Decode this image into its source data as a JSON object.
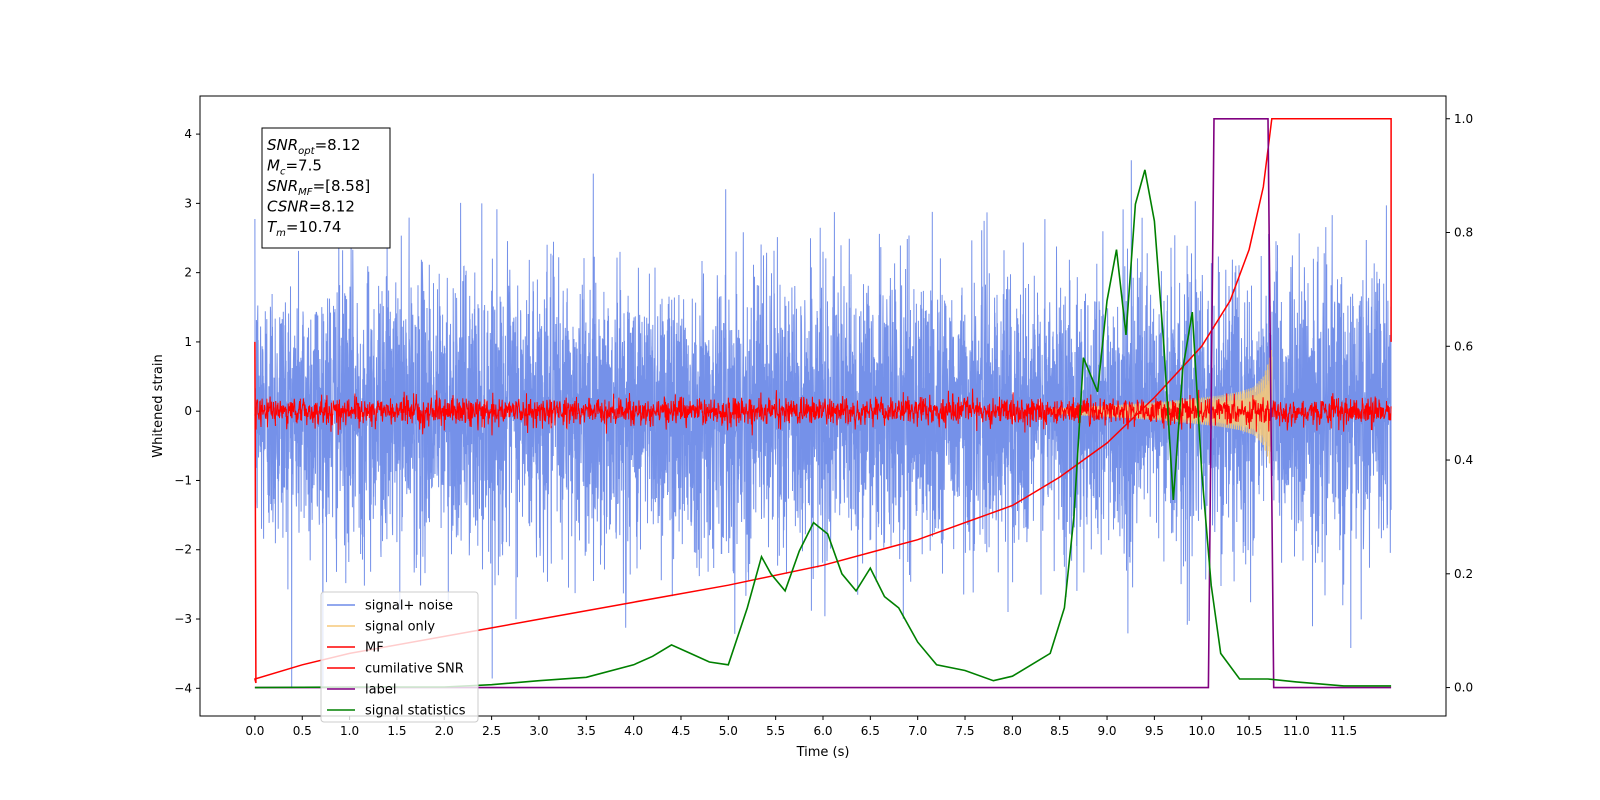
{
  "chart_data": {
    "type": "line",
    "title": "",
    "xlabel": "Time (s)",
    "ylabel": "Whitened strain",
    "xlim": [
      -0.58,
      12.58
    ],
    "ylim": [
      -4.4,
      4.55
    ],
    "y2lim": [
      -0.05,
      1.04
    ],
    "x_ticks": [
      0.0,
      0.5,
      1.0,
      1.5,
      2.0,
      2.5,
      3.0,
      3.5,
      4.0,
      4.5,
      5.0,
      5.5,
      6.0,
      6.5,
      7.0,
      7.5,
      8.0,
      8.5,
      9.0,
      9.5,
      10.0,
      10.5,
      11.0,
      11.5
    ],
    "x_tick_labels": [
      "0.0",
      "0.5",
      "1.0",
      "1.5",
      "2.0",
      "2.5",
      "3.0",
      "3.5",
      "4.0",
      "4.5",
      "5.0",
      "5.5",
      "6.0",
      "6.5",
      "7.0",
      "7.5",
      "8.0",
      "8.5",
      "9.0",
      "9.5",
      "10.0",
      "10.5",
      "11.0",
      "11.5"
    ],
    "y_ticks": [
      -4,
      -3,
      -2,
      -1,
      0,
      1,
      2,
      3,
      4
    ],
    "y_tick_labels": [
      "−4",
      "−3",
      "−2",
      "−1",
      "0",
      "1",
      "2",
      "3",
      "4"
    ],
    "y2_ticks": [
      0.0,
      0.2,
      0.4,
      0.6,
      0.8,
      1.0
    ],
    "y2_tick_labels": [
      "0.0",
      "0.2",
      "0.4",
      "0.6",
      "0.8",
      "1.0"
    ],
    "annotation": {
      "lines": [
        {
          "base": "SNR",
          "sub": "opt",
          "rest": "=8.12"
        },
        {
          "base": "M",
          "sub": "c",
          "rest": "=7.5"
        },
        {
          "base": "SNR",
          "sub": "MF",
          "rest": "=[8.58]"
        },
        {
          "base": "CSNR",
          "sub": "",
          "rest": "=8.12"
        },
        {
          "base": "T",
          "sub": "m",
          "rest": "=10.74"
        }
      ]
    },
    "legend": {
      "placement": "lower-left",
      "entries": [
        {
          "label": "signal+ noise",
          "color": "#6e8be8"
        },
        {
          "label": "signal only",
          "color": "#f5c97a"
        },
        {
          "label": "MF",
          "color": "#ff0000"
        },
        {
          "label": "cumilative SNR",
          "color": "#ff0000"
        },
        {
          "label": "label",
          "color": "#800080"
        },
        {
          "label": "signal statistics",
          "color": "#008000"
        }
      ]
    },
    "series": [
      {
        "name": "signal+ noise",
        "axis": "left",
        "color": "#6e8be8",
        "kind": "noise",
        "x_range": [
          0.0,
          12.0
        ],
        "std": 1.0,
        "clip": [
          -4.0,
          3.8
        ]
      },
      {
        "name": "signal only",
        "axis": "left",
        "color": "#f5c97a",
        "kind": "chirp-envelope",
        "x": [
          8.4,
          8.8,
          9.2,
          9.6,
          9.9,
          10.2,
          10.4,
          10.55,
          10.65,
          10.7,
          10.74
        ],
        "amplitude": [
          0.04,
          0.07,
          0.1,
          0.14,
          0.18,
          0.23,
          0.28,
          0.35,
          0.5,
          0.7,
          0.9
        ]
      },
      {
        "name": "MF",
        "axis": "left",
        "color": "#ff0000",
        "kind": "noise",
        "x_range": [
          0.0,
          12.0
        ],
        "std": 0.1,
        "clip": [
          -0.35,
          0.4
        ]
      },
      {
        "name": "cumilative SNR",
        "axis": "right",
        "color": "#ff0000",
        "x": [
          0.0,
          0.5,
          1.0,
          2.0,
          3.0,
          4.0,
          5.0,
          6.0,
          7.0,
          8.0,
          8.5,
          9.0,
          9.5,
          10.0,
          10.3,
          10.5,
          10.65,
          10.74,
          12.0
        ],
        "y": [
          0.015,
          0.04,
          0.06,
          0.09,
          0.12,
          0.15,
          0.18,
          0.215,
          0.26,
          0.32,
          0.37,
          0.43,
          0.51,
          0.6,
          0.68,
          0.77,
          0.88,
          1.0,
          1.0
        ]
      },
      {
        "name": "label",
        "axis": "right",
        "color": "#800080",
        "x": [
          0.0,
          10.07,
          10.13,
          10.7,
          10.76,
          12.0
        ],
        "y": [
          0.0,
          0.0,
          1.0,
          1.0,
          0.0,
          0.0
        ]
      },
      {
        "name": "signal statistics",
        "axis": "right",
        "color": "#008000",
        "x": [
          0.0,
          1.0,
          2.0,
          2.5,
          3.0,
          3.5,
          4.0,
          4.2,
          4.4,
          4.6,
          4.8,
          5.0,
          5.2,
          5.35,
          5.45,
          5.6,
          5.75,
          5.9,
          6.05,
          6.2,
          6.35,
          6.5,
          6.65,
          6.8,
          7.0,
          7.2,
          7.5,
          7.8,
          8.0,
          8.2,
          8.4,
          8.55,
          8.65,
          8.75,
          8.9,
          9.0,
          9.1,
          9.2,
          9.3,
          9.4,
          9.5,
          9.6,
          9.7,
          9.8,
          9.9,
          10.0,
          10.1,
          10.2,
          10.4,
          10.7,
          11.0,
          11.5,
          12.0
        ],
        "y": [
          0.0,
          0.001,
          0.001,
          0.005,
          0.012,
          0.018,
          0.04,
          0.055,
          0.075,
          0.06,
          0.045,
          0.04,
          0.14,
          0.23,
          0.2,
          0.17,
          0.24,
          0.29,
          0.27,
          0.2,
          0.17,
          0.21,
          0.16,
          0.14,
          0.08,
          0.04,
          0.03,
          0.012,
          0.02,
          0.04,
          0.06,
          0.14,
          0.3,
          0.58,
          0.52,
          0.68,
          0.77,
          0.62,
          0.85,
          0.91,
          0.82,
          0.6,
          0.33,
          0.56,
          0.66,
          0.38,
          0.18,
          0.06,
          0.015,
          0.015,
          0.01,
          0.003,
          0.003
        ]
      }
    ]
  }
}
